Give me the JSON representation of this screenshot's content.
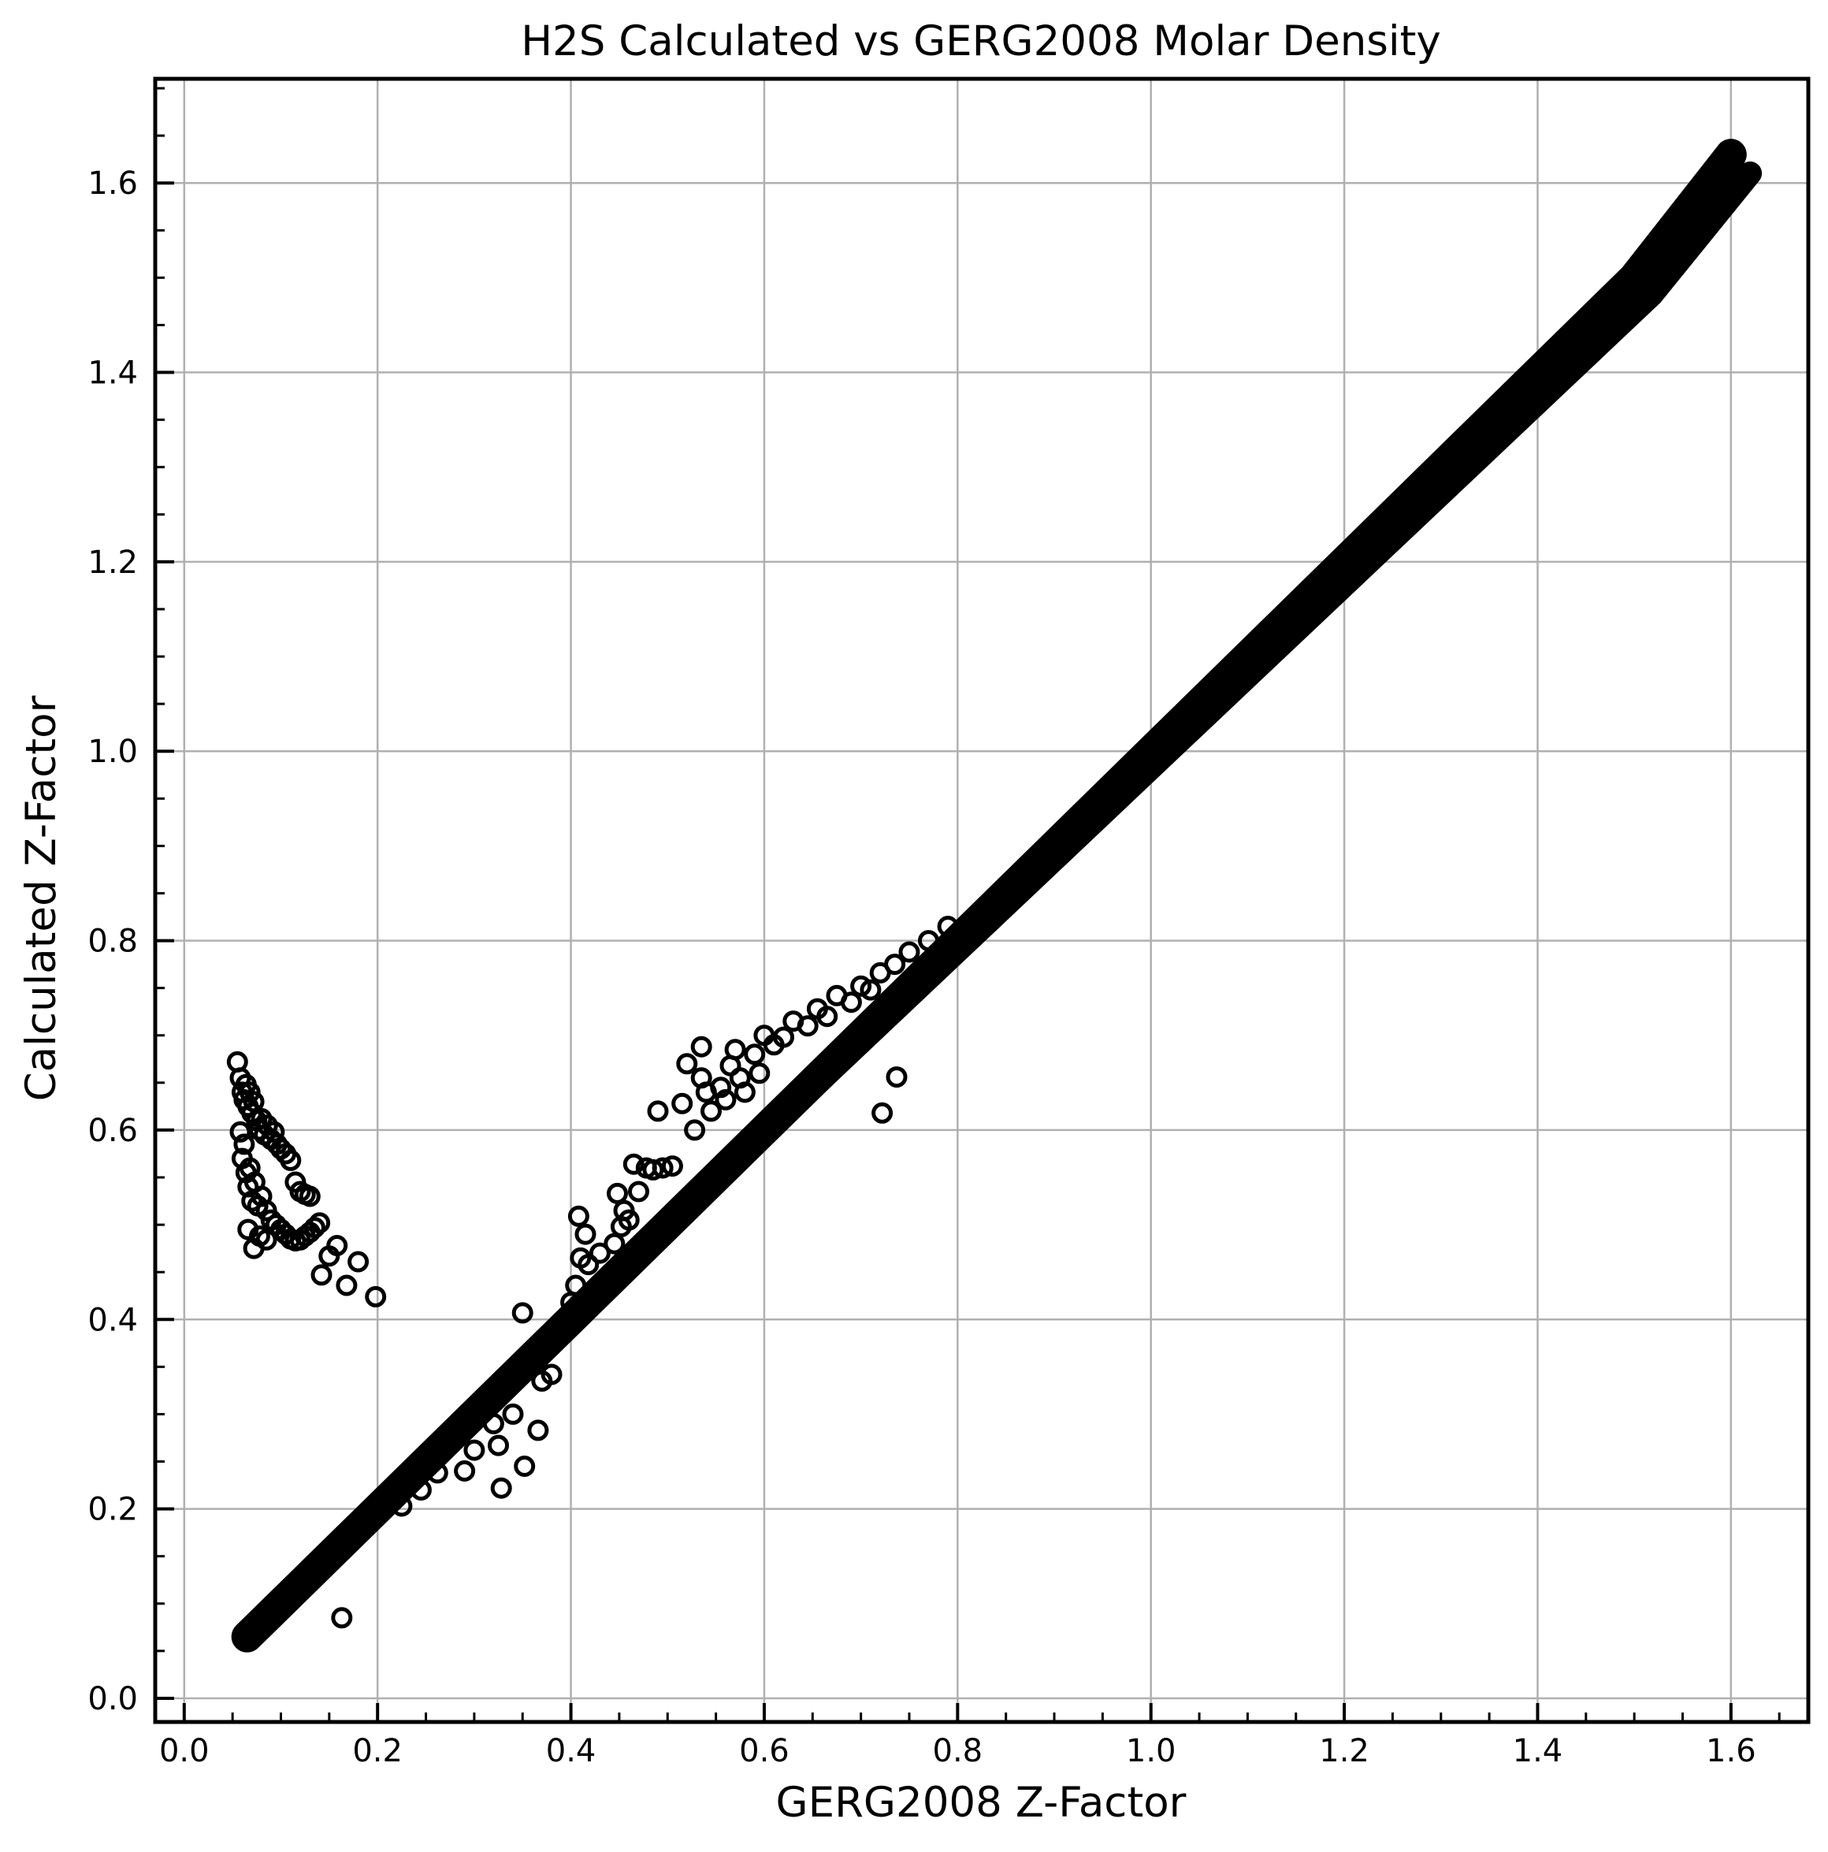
{
  "chart_data": {
    "type": "scatter",
    "title": "H2S Calculated vs GERG2008 Molar Density",
    "xlabel": "GERG2008 Z-Factor",
    "ylabel": "Calculated Z-Factor",
    "xlim": [
      -0.03,
      1.68
    ],
    "ylim": [
      -0.025,
      1.71
    ],
    "xticks": [
      0.0,
      0.2,
      0.4,
      0.6,
      0.8,
      1.0,
      1.2,
      1.4,
      1.6
    ],
    "xtick_labels": [
      "0.0",
      "0.2",
      "0.4",
      "0.6",
      "0.8",
      "1.0",
      "1.2",
      "1.4",
      "1.6"
    ],
    "yticks": [
      0.0,
      0.2,
      0.4,
      0.6,
      0.8,
      1.0,
      1.2,
      1.4,
      1.6
    ],
    "ytick_labels": [
      "0.0",
      "0.2",
      "0.4",
      "0.6",
      "0.8",
      "1.0",
      "1.2",
      "1.4",
      "1.6"
    ],
    "grid": true,
    "marker": "open-circle",
    "marker_color": "#000000",
    "grid_color": "#b0b0b0",
    "main_band": {
      "description_range_x": [
        0.065,
        1.6
      ],
      "x": [
        0.065,
        0.1,
        0.2,
        0.3,
        0.4,
        0.5,
        0.6,
        0.7,
        0.8,
        0.9,
        1.0,
        1.1,
        1.2,
        1.3,
        1.4,
        1.5,
        1.6
      ],
      "y": [
        0.065,
        0.1,
        0.2,
        0.3,
        0.4,
        0.5,
        0.6,
        0.7,
        0.8,
        0.9,
        1.0,
        1.1,
        1.2,
        1.3,
        1.4,
        1.5,
        1.63
      ]
    },
    "points": [
      [
        0.055,
        0.672
      ],
      [
        0.058,
        0.655
      ],
      [
        0.06,
        0.64
      ],
      [
        0.062,
        0.632
      ],
      [
        0.064,
        0.648
      ],
      [
        0.066,
        0.625
      ],
      [
        0.068,
        0.64
      ],
      [
        0.07,
        0.618
      ],
      [
        0.072,
        0.63
      ],
      [
        0.075,
        0.61
      ],
      [
        0.078,
        0.6
      ],
      [
        0.08,
        0.612
      ],
      [
        0.083,
        0.595
      ],
      [
        0.086,
        0.605
      ],
      [
        0.09,
        0.59
      ],
      [
        0.093,
        0.598
      ],
      [
        0.096,
        0.585
      ],
      [
        0.1,
        0.58
      ],
      [
        0.105,
        0.575
      ],
      [
        0.11,
        0.568
      ],
      [
        0.115,
        0.545
      ],
      [
        0.12,
        0.535
      ],
      [
        0.125,
        0.532
      ],
      [
        0.13,
        0.53
      ],
      [
        0.058,
        0.598
      ],
      [
        0.06,
        0.57
      ],
      [
        0.062,
        0.585
      ],
      [
        0.064,
        0.555
      ],
      [
        0.066,
        0.54
      ],
      [
        0.068,
        0.56
      ],
      [
        0.07,
        0.525
      ],
      [
        0.073,
        0.545
      ],
      [
        0.076,
        0.52
      ],
      [
        0.08,
        0.53
      ],
      [
        0.085,
        0.515
      ],
      [
        0.09,
        0.505
      ],
      [
        0.095,
        0.5
      ],
      [
        0.1,
        0.495
      ],
      [
        0.105,
        0.49
      ],
      [
        0.11,
        0.485
      ],
      [
        0.115,
        0.483
      ],
      [
        0.12,
        0.484
      ],
      [
        0.125,
        0.488
      ],
      [
        0.13,
        0.492
      ],
      [
        0.135,
        0.497
      ],
      [
        0.14,
        0.502
      ],
      [
        0.066,
        0.495
      ],
      [
        0.072,
        0.475
      ],
      [
        0.078,
        0.488
      ],
      [
        0.085,
        0.484
      ],
      [
        0.142,
        0.447
      ],
      [
        0.15,
        0.467
      ],
      [
        0.158,
        0.478
      ],
      [
        0.168,
        0.436
      ],
      [
        0.18,
        0.461
      ],
      [
        0.198,
        0.424
      ],
      [
        0.163,
        0.085
      ],
      [
        0.225,
        0.203
      ],
      [
        0.245,
        0.22
      ],
      [
        0.262,
        0.238
      ],
      [
        0.29,
        0.24
      ],
      [
        0.3,
        0.262
      ],
      [
        0.325,
        0.267
      ],
      [
        0.328,
        0.222
      ],
      [
        0.34,
        0.3
      ],
      [
        0.352,
        0.245
      ],
      [
        0.366,
        0.283
      ],
      [
        0.35,
        0.407
      ],
      [
        0.32,
        0.29
      ],
      [
        0.37,
        0.335
      ],
      [
        0.38,
        0.342
      ],
      [
        0.4,
        0.418
      ],
      [
        0.405,
        0.436
      ],
      [
        0.408,
        0.509
      ],
      [
        0.41,
        0.465
      ],
      [
        0.415,
        0.49
      ],
      [
        0.418,
        0.458
      ],
      [
        0.43,
        0.47
      ],
      [
        0.445,
        0.48
      ],
      [
        0.448,
        0.533
      ],
      [
        0.452,
        0.498
      ],
      [
        0.455,
        0.515
      ],
      [
        0.46,
        0.505
      ],
      [
        0.465,
        0.564
      ],
      [
        0.47,
        0.535
      ],
      [
        0.478,
        0.56
      ],
      [
        0.485,
        0.558
      ],
      [
        0.49,
        0.62
      ],
      [
        0.495,
        0.56
      ],
      [
        0.505,
        0.562
      ],
      [
        0.515,
        0.628
      ],
      [
        0.52,
        0.67
      ],
      [
        0.528,
        0.6
      ],
      [
        0.535,
        0.688
      ],
      [
        0.535,
        0.655
      ],
      [
        0.54,
        0.64
      ],
      [
        0.545,
        0.62
      ],
      [
        0.555,
        0.645
      ],
      [
        0.56,
        0.632
      ],
      [
        0.565,
        0.668
      ],
      [
        0.57,
        0.685
      ],
      [
        0.575,
        0.655
      ],
      [
        0.58,
        0.64
      ],
      [
        0.59,
        0.68
      ],
      [
        0.595,
        0.66
      ],
      [
        0.6,
        0.7
      ],
      [
        0.61,
        0.69
      ],
      [
        0.62,
        0.698
      ],
      [
        0.63,
        0.715
      ],
      [
        0.645,
        0.71
      ],
      [
        0.655,
        0.728
      ],
      [
        0.665,
        0.72
      ],
      [
        0.675,
        0.742
      ],
      [
        0.69,
        0.735
      ],
      [
        0.7,
        0.752
      ],
      [
        0.71,
        0.748
      ],
      [
        0.72,
        0.766
      ],
      [
        0.735,
        0.775
      ],
      [
        0.75,
        0.788
      ],
      [
        0.77,
        0.8
      ],
      [
        0.79,
        0.815
      ],
      [
        0.722,
        0.618
      ],
      [
        0.737,
        0.656
      ]
    ]
  }
}
